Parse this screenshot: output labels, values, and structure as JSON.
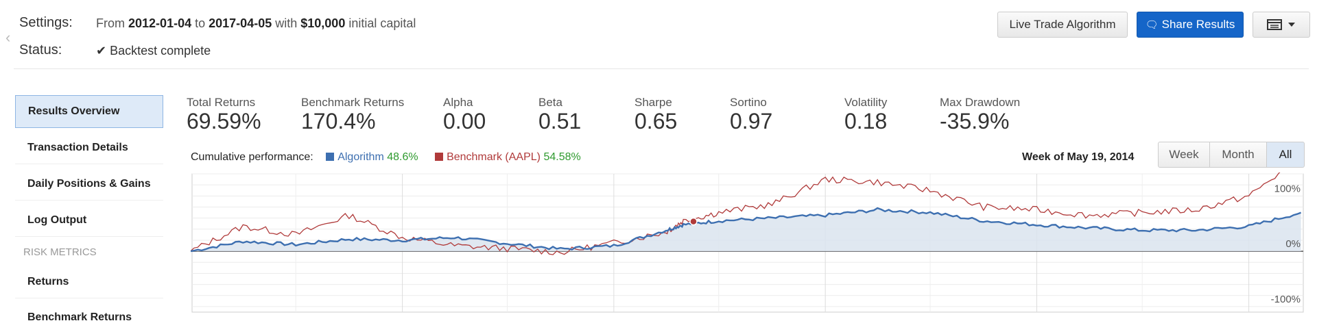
{
  "header": {
    "settings_label": "Settings:",
    "settings_from": "From",
    "start_date": "2012-01-04",
    "settings_to": "to",
    "end_date": "2017-04-05",
    "settings_with": "with",
    "capital": "$10,000",
    "settings_suffix": "initial capital",
    "status_label": "Status:",
    "status_value": "Backtest complete"
  },
  "toolbar": {
    "live_trade_label": "Live Trade Algorithm",
    "share_label": "Share Results"
  },
  "sidebar": {
    "items": [
      {
        "label": "Results Overview"
      },
      {
        "label": "Transaction Details"
      },
      {
        "label": "Daily Positions & Gains"
      },
      {
        "label": "Log Output"
      }
    ],
    "section_heading": "RISK METRICS",
    "risk_items": [
      {
        "label": "Returns"
      },
      {
        "label": "Benchmark Returns"
      }
    ]
  },
  "metrics": [
    {
      "label": "Total Returns",
      "value": "69.59%"
    },
    {
      "label": "Benchmark Returns",
      "value": "170.4%"
    },
    {
      "label": "Alpha",
      "value": "0.00"
    },
    {
      "label": "Beta",
      "value": "0.51"
    },
    {
      "label": "Sharpe",
      "value": "0.65"
    },
    {
      "label": "Sortino",
      "value": "0.97"
    },
    {
      "label": "Volatility",
      "value": "0.18"
    },
    {
      "label": "Max Drawdown",
      "value": "-35.9%"
    }
  ],
  "performance": {
    "title": "Cumulative performance:",
    "algo_name": "Algorithm",
    "algo_value": "48.6%",
    "bench_name": "Benchmark (AAPL)",
    "bench_value": "54.58%",
    "week_label": "Week of May 19, 2014",
    "range_buttons": [
      "Week",
      "Month",
      "All"
    ],
    "selected_range": "All"
  },
  "colors": {
    "algorithm": "#3d6fb0",
    "benchmark": "#b03a3a",
    "positive": "#2e9a2e",
    "primary": "#1565c8"
  },
  "chart_data": {
    "type": "line",
    "x_range": [
      "2012-01-04",
      "2017-04-05"
    ],
    "ylim": [
      -110,
      140
    ],
    "ytick_labels": [
      "100%",
      "0%",
      "-100%"
    ],
    "grid": true,
    "series": [
      {
        "name": "Algorithm",
        "x": [
          "2012-01",
          "2012-04",
          "2012-07",
          "2012-10",
          "2013-01",
          "2013-04",
          "2013-07",
          "2013-10",
          "2014-01",
          "2014-04",
          "2014-05",
          "2014-07",
          "2014-10",
          "2015-01",
          "2015-04",
          "2015-07",
          "2015-10",
          "2016-01",
          "2016-04",
          "2016-07",
          "2016-10",
          "2017-01",
          "2017-04"
        ],
        "values": [
          0,
          18,
          12,
          22,
          20,
          25,
          14,
          4,
          10,
          38,
          48,
          55,
          60,
          65,
          75,
          70,
          55,
          48,
          42,
          38,
          38,
          45,
          70
        ]
      },
      {
        "name": "Benchmark (AAPL)",
        "x": [
          "2012-01",
          "2012-04",
          "2012-07",
          "2012-10",
          "2013-01",
          "2013-04",
          "2013-07",
          "2013-10",
          "2014-01",
          "2014-04",
          "2014-05",
          "2014-07",
          "2014-10",
          "2015-01",
          "2015-04",
          "2015-07",
          "2015-10",
          "2016-01",
          "2016-04",
          "2016-07",
          "2016-10",
          "2017-01",
          "2017-04"
        ],
        "values": [
          0,
          45,
          30,
          65,
          25,
          10,
          5,
          -2,
          15,
          35,
          55,
          70,
          85,
          130,
          125,
          110,
          80,
          75,
          65,
          70,
          75,
          100,
          170
        ]
      }
    ],
    "marker": {
      "date": "2014-05-19"
    }
  }
}
